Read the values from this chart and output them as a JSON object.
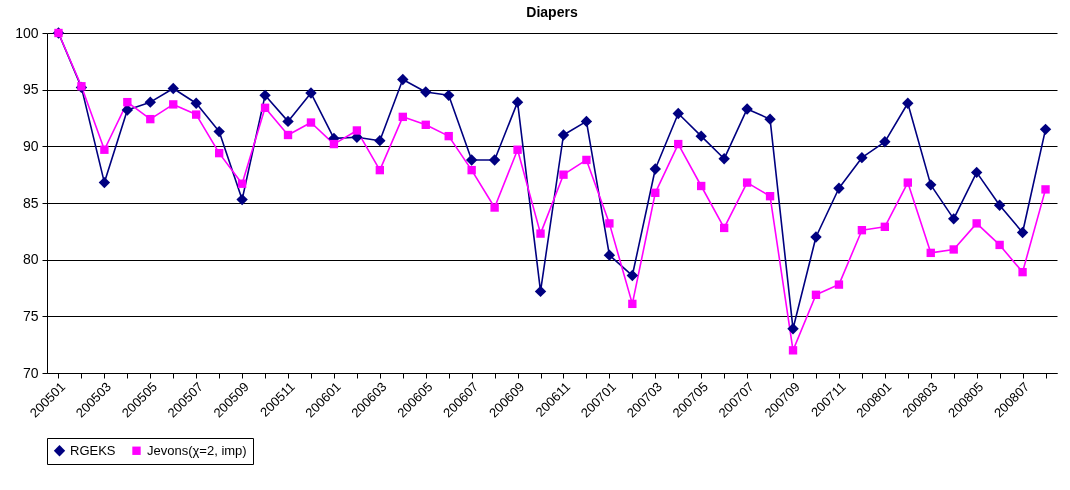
{
  "chart_data": {
    "type": "line",
    "title": "Diapers",
    "categories": [
      "200501",
      null,
      "200503",
      null,
      "200505",
      null,
      "200507",
      null,
      "200509",
      null,
      "200511",
      null,
      "200601",
      null,
      "200603",
      null,
      "200605",
      null,
      "200607",
      null,
      "200609",
      null,
      "200611",
      null,
      "200701",
      null,
      "200703",
      null,
      "200705",
      null,
      "200707",
      null,
      "200709",
      null,
      "200711",
      null,
      "200801",
      null,
      "200803",
      null,
      "200805",
      null,
      "200807",
      null
    ],
    "series": [
      {
        "name": "RGEKS",
        "color": "#000080",
        "marker": "diamond",
        "values": [
          100,
          95.2,
          86.8,
          93.2,
          93.9,
          95.1,
          93.8,
          91.3,
          85.3,
          94.5,
          92.2,
          94.7,
          90.7,
          90.8,
          90.5,
          95.9,
          94.8,
          94.5,
          88.8,
          88.8,
          93.9,
          77.2,
          91.0,
          92.2,
          80.4,
          78.6,
          88.0,
          92.9,
          90.9,
          88.9,
          93.3,
          92.4,
          73.9,
          82.0,
          86.3,
          89.0,
          90.4,
          93.8,
          86.6,
          83.6,
          87.7,
          84.8,
          82.4,
          91.5
        ]
      },
      {
        "name": "Jevons(χ=2, imp)",
        "color": "#ff00ff",
        "marker": "square",
        "values": [
          100,
          95.3,
          89.7,
          93.9,
          92.4,
          93.7,
          92.8,
          89.4,
          86.7,
          93.4,
          91.0,
          92.1,
          90.2,
          91.4,
          87.9,
          92.6,
          91.9,
          90.9,
          87.9,
          84.6,
          89.7,
          82.3,
          87.5,
          88.8,
          83.2,
          76.1,
          85.9,
          90.2,
          86.5,
          82.8,
          86.8,
          85.6,
          72.0,
          76.9,
          77.8,
          82.6,
          82.9,
          86.8,
          80.6,
          80.9,
          83.2,
          81.3,
          78.9,
          86.2
        ]
      }
    ],
    "ylim": [
      70,
      100
    ],
    "yticks": [
      70,
      75,
      80,
      85,
      90,
      95,
      100
    ],
    "grid": "y",
    "legend": "bottom"
  }
}
